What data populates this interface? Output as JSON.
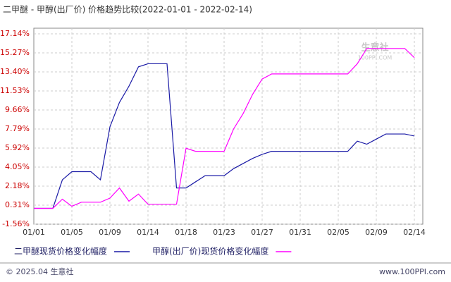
{
  "chart_data": {
    "type": "line",
    "title": "二甲醚 - 甲醇(出厂价) 价格趋势比较(2022-01-01 - 2022-02-14)",
    "categories": [
      "01/01",
      null,
      null,
      null,
      "01/05",
      null,
      null,
      null,
      "01/09",
      null,
      null,
      null,
      "01/14",
      null,
      null,
      null,
      "01/18",
      null,
      null,
      null,
      "01/23",
      null,
      null,
      null,
      "01/27",
      null,
      null,
      null,
      "01/31",
      null,
      null,
      null,
      "02/05",
      null,
      null,
      null,
      "02/09",
      null,
      null,
      null,
      "02/14"
    ],
    "series": [
      {
        "name": "二甲醚现货价格变化幅度",
        "color": "#1a1aa6",
        "values": [
          0,
          0,
          0,
          2.8,
          3.6,
          3.6,
          3.6,
          2.8,
          8.0,
          10.4,
          12.0,
          13.9,
          14.2,
          14.2,
          14.2,
          2.0,
          2.0,
          2.6,
          3.2,
          3.2,
          3.2,
          3.9,
          4.4,
          4.9,
          5.3,
          5.6,
          5.6,
          5.6,
          5.6,
          5.6,
          5.6,
          5.6,
          5.6,
          5.6,
          6.6,
          6.3,
          6.8,
          7.3,
          7.3,
          7.3,
          7.1
        ]
      },
      {
        "name": "甲醇(出厂价)现货价格变化幅度",
        "color": "#ff00ff",
        "values": [
          0,
          0,
          0,
          0.9,
          0.2,
          0.6,
          0.6,
          0.6,
          1.0,
          2.0,
          0.7,
          1.4,
          0.4,
          0.4,
          0.4,
          0.4,
          5.9,
          5.6,
          5.6,
          5.6,
          5.6,
          7.8,
          9.3,
          11.2,
          12.7,
          13.2,
          13.2,
          13.2,
          13.2,
          13.2,
          13.2,
          13.2,
          13.2,
          13.2,
          14.2,
          15.7,
          15.7,
          15.7,
          15.7,
          15.7,
          14.8
        ]
      }
    ],
    "ylim": [
      -1.56,
      17.14
    ],
    "yticks": [
      {
        "value": -1.56,
        "label": "-1.56%"
      },
      {
        "value": 0.31,
        "label": "0.31%"
      },
      {
        "value": 2.18,
        "label": "2.18%"
      },
      {
        "value": 4.05,
        "label": "4.05%"
      },
      {
        "value": 5.92,
        "label": "5.92%"
      },
      {
        "value": 7.79,
        "label": "7.79%"
      },
      {
        "value": 9.66,
        "label": "9.66%"
      },
      {
        "value": 11.53,
        "label": "11.53%"
      },
      {
        "value": 13.4,
        "label": "13.40%"
      },
      {
        "value": 15.27,
        "label": "15.27%"
      },
      {
        "value": 17.14,
        "label": "17.14%"
      }
    ],
    "grid": true,
    "watermark": "生意社",
    "watermark_url": "100PPI.COM",
    "footer_left": "© 2025.04 生意社",
    "footer_right": "www.100PPI.com"
  }
}
